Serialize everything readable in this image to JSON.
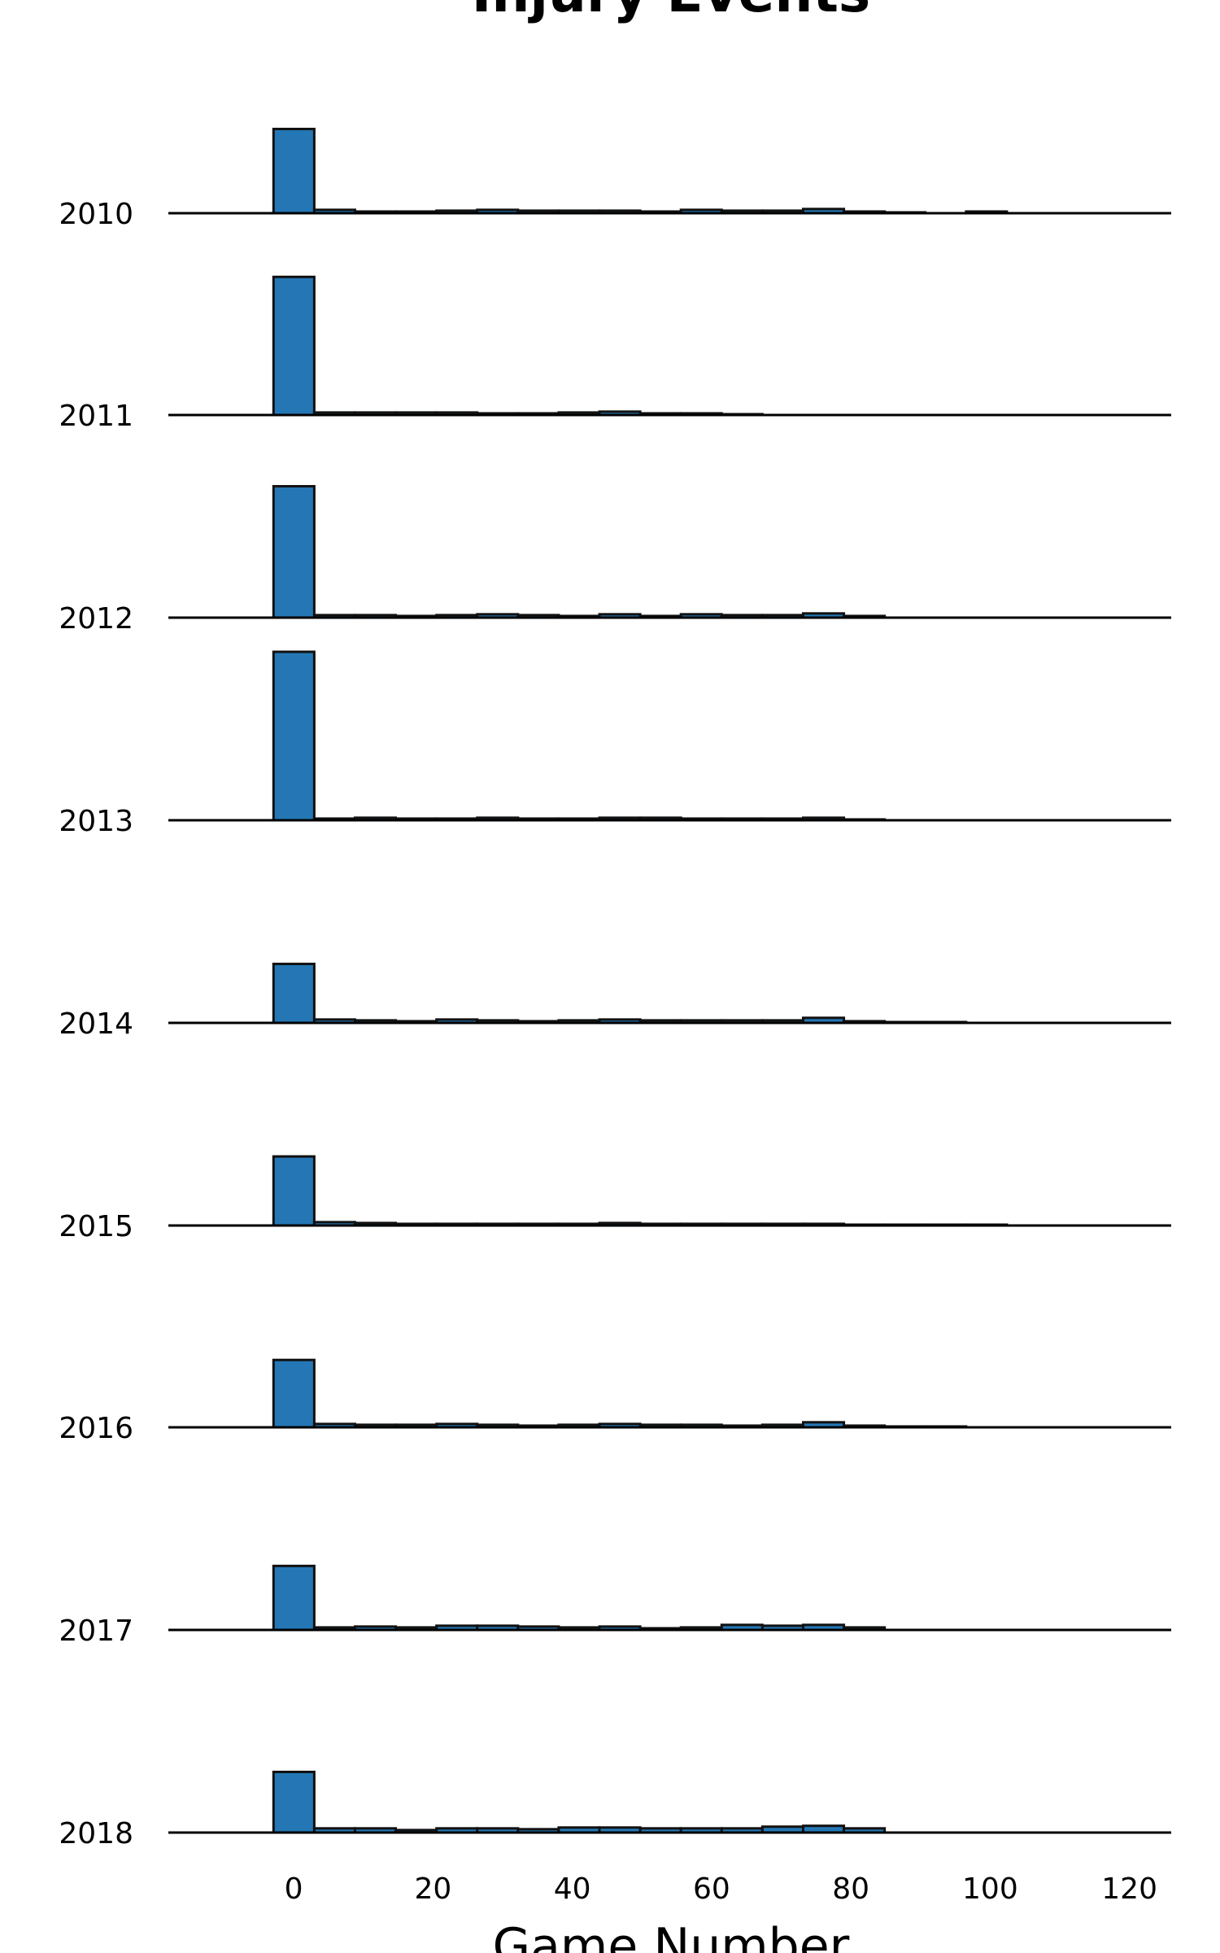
{
  "chart_data": {
    "type": "bar",
    "title": "Injury Events",
    "xlabel": "Game Number",
    "ylabel": "",
    "xlim": [
      -18,
      126
    ],
    "xticks": [
      0,
      20,
      40,
      60,
      80,
      100,
      120
    ],
    "bin_width": 5.85,
    "bin_start": -2.9,
    "row_max_count": 100,
    "grid": false,
    "series": [
      {
        "name": "2010",
        "values": [
          50,
          2,
          1,
          1,
          1.5,
          2,
          1.5,
          1.5,
          1.5,
          1,
          2,
          1.5,
          1.5,
          2.5,
          1,
          0.5,
          0,
          1
        ]
      },
      {
        "name": "2011",
        "values": [
          82,
          1.5,
          1.5,
          1.5,
          1.5,
          1,
          1,
          1.5,
          2,
          1,
          1,
          0.5,
          0,
          0,
          0,
          0,
          0,
          0
        ]
      },
      {
        "name": "2012",
        "values": [
          78,
          1.5,
          1.5,
          1,
          1.5,
          2,
          1.5,
          1,
          2,
          1,
          2,
          1.5,
          1.5,
          2.5,
          1,
          0,
          0,
          0
        ]
      },
      {
        "name": "2013",
        "values": [
          100,
          1,
          1.5,
          1,
          1,
          1.5,
          1,
          1,
          1.5,
          1.5,
          1,
          1,
          1,
          1.5,
          0.5,
          0,
          0,
          0
        ]
      },
      {
        "name": "2014",
        "values": [
          35,
          2,
          1.5,
          1,
          2,
          1.5,
          1,
          1.5,
          2,
          1.5,
          1.5,
          1.5,
          1.5,
          3,
          1,
          0.5,
          0.5,
          0
        ]
      },
      {
        "name": "2015",
        "values": [
          41,
          2,
          1.5,
          1,
          1,
          1,
          1,
          1,
          1.5,
          1,
          1,
          1,
          1,
          1,
          0.5,
          0.5,
          0.5,
          0.5
        ]
      },
      {
        "name": "2016",
        "values": [
          40,
          2,
          1.5,
          1.5,
          2,
          1.5,
          1,
          1.5,
          2,
          1.5,
          1.5,
          1,
          1.5,
          3,
          1,
          0.5,
          0.5,
          0
        ]
      },
      {
        "name": "2017",
        "values": [
          38,
          1.5,
          2,
          1.5,
          2.5,
          2.5,
          2,
          1.5,
          2,
          1,
          1.5,
          3,
          2.5,
          3,
          1.5,
          0,
          0,
          0
        ]
      },
      {
        "name": "2018",
        "values": [
          36,
          2.5,
          2.5,
          1.5,
          2.5,
          2.5,
          2,
          3,
          3,
          2.5,
          2.5,
          2.5,
          3.5,
          4,
          2.5,
          0,
          0,
          0
        ]
      }
    ]
  }
}
